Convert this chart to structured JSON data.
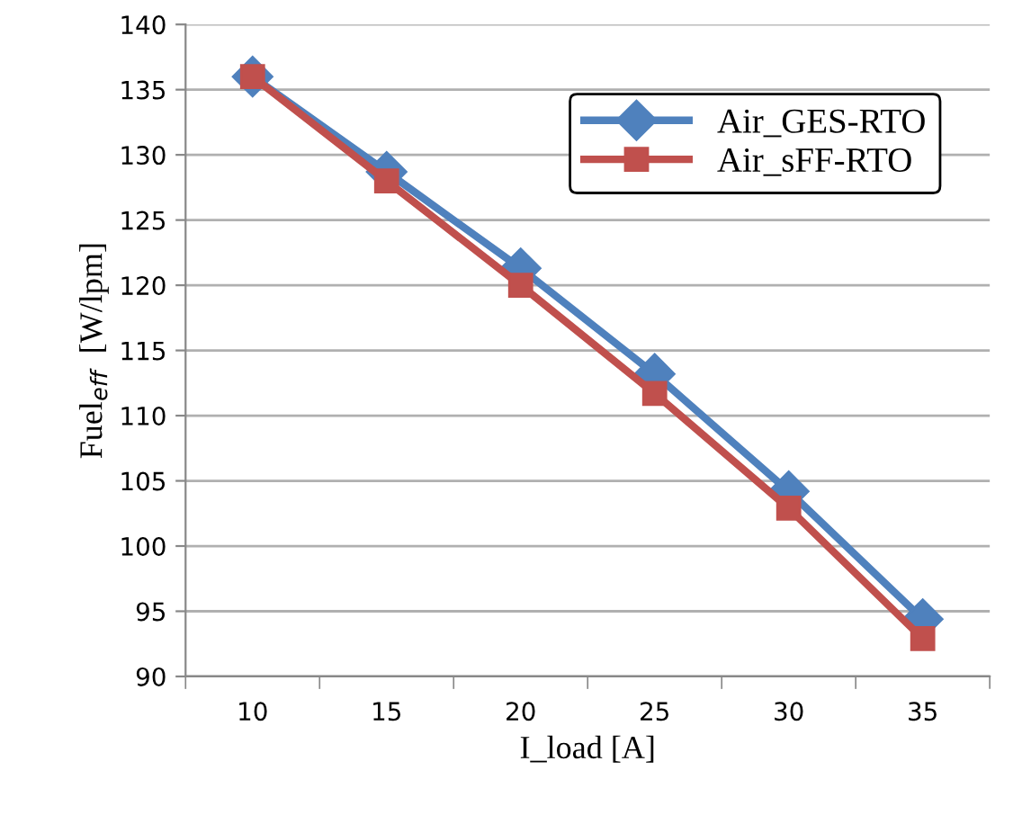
{
  "chart_data": {
    "type": "line",
    "xlabel": "I_load [A]",
    "ylabel": "Fuel$_{eff}$  [W/lpm]",
    "categories": [
      "10",
      "15",
      "20",
      "25",
      "30",
      "35"
    ],
    "series": [
      {
        "name": "Air_GES-RTO",
        "color": "#4f81bd",
        "marker": "diamond",
        "values": [
          136,
          128.7,
          121.3,
          113.2,
          104.2,
          94.4
        ]
      },
      {
        "name": "Air_sFF-RTO",
        "color": "#c0504d",
        "marker": "square",
        "values": [
          136,
          128,
          120,
          111.7,
          102.9,
          92.9
        ]
      }
    ],
    "ylim": [
      90,
      140
    ],
    "yticks": [
      90,
      95,
      100,
      105,
      110,
      115,
      120,
      125,
      130,
      135,
      140
    ],
    "grid": "y",
    "legend": "top right"
  }
}
